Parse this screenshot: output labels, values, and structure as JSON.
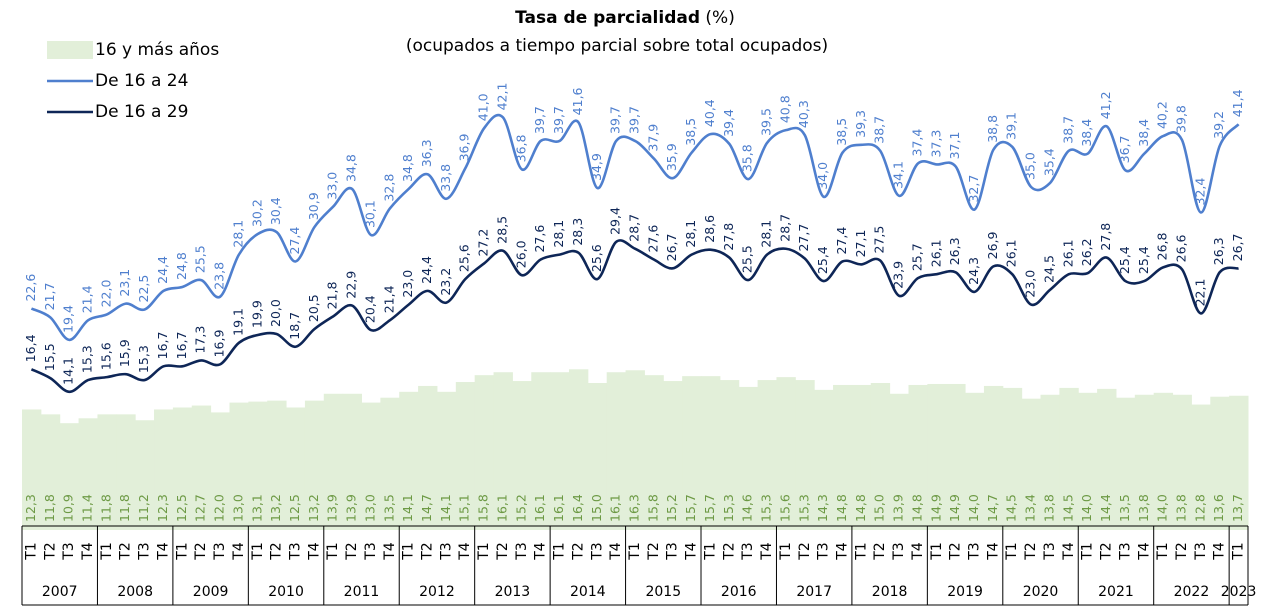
{
  "chart_data": {
    "type": "bar_line",
    "title": "Tasa de parcialidad",
    "title_unit": "(%)",
    "subtitle": "(ocupados a tiempo parcial sobre total ocupados)",
    "categories": [
      "T1",
      "T2",
      "T3",
      "T4",
      "T1",
      "T2",
      "T3",
      "T4",
      "T1",
      "T2",
      "T3",
      "T4",
      "T1",
      "T2",
      "T3",
      "T4",
      "T1",
      "T2",
      "T3",
      "T4",
      "T1",
      "T2",
      "T3",
      "T4",
      "T1",
      "T2",
      "T3",
      "T4",
      "T1",
      "T2",
      "T3",
      "T4",
      "T1",
      "T2",
      "T3",
      "T4",
      "T1",
      "T2",
      "T3",
      "T4",
      "T1",
      "T2",
      "T3",
      "T4",
      "T1",
      "T2",
      "T3",
      "T4",
      "T1",
      "T2",
      "T3",
      "T4",
      "T1",
      "T2",
      "T3",
      "T4",
      "T1",
      "T2",
      "T3",
      "T4",
      "T1",
      "T2",
      "T3",
      "T4",
      "T1"
    ],
    "years": [
      "2007",
      "2008",
      "2009",
      "2010",
      "2011",
      "2012",
      "2013",
      "2014",
      "2015",
      "2016",
      "2017",
      "2018",
      "2019",
      "2020",
      "2021",
      "2022",
      "2023"
    ],
    "ylim": [
      0,
      50
    ],
    "series": [
      {
        "name": "16 y más años",
        "kind": "bar",
        "color": "#e2efd9",
        "label_color": "#6d9a45",
        "values": [
          12.3,
          11.8,
          10.9,
          11.4,
          11.8,
          11.8,
          11.2,
          12.3,
          12.5,
          12.7,
          12.0,
          13.0,
          13.1,
          13.2,
          12.5,
          13.2,
          13.9,
          13.9,
          13.0,
          13.5,
          14.1,
          14.7,
          14.1,
          15.1,
          15.8,
          16.1,
          15.2,
          16.1,
          16.1,
          16.4,
          15.0,
          16.1,
          16.3,
          15.8,
          15.2,
          15.7,
          15.7,
          15.3,
          14.6,
          15.3,
          15.6,
          15.3,
          14.3,
          14.8,
          14.8,
          15.0,
          13.9,
          14.8,
          14.9,
          14.9,
          14.0,
          14.7,
          14.5,
          13.4,
          13.8,
          14.5,
          14.0,
          14.4,
          13.5,
          13.8,
          14.0,
          13.8,
          12.8,
          13.6,
          13.7
        ],
        "value_labels": [
          "12,3",
          "11,8",
          "10,9",
          "11,4",
          "11,8",
          "11,8",
          "11,2",
          "12,3",
          "12,5",
          "12,7",
          "12,0",
          "13,0",
          "13,1",
          "13,2",
          "12,5",
          "13,2",
          "13,9",
          "13,9",
          "13,0",
          "13,5",
          "14,1",
          "14,7",
          "14,1",
          "15,1",
          "15,8",
          "16,1",
          "15,2",
          "16,1",
          "16,1",
          "16,4",
          "15,0",
          "16,1",
          "16,3",
          "15,8",
          "15,2",
          "15,7",
          "15,7",
          "15,3",
          "14,6",
          "15,3",
          "15,6",
          "15,3",
          "14,3",
          "14,8",
          "14,8",
          "15,0",
          "13,9",
          "14,8",
          "14,9",
          "14,9",
          "14,0",
          "14,7",
          "14,5",
          "13,4",
          "13,8",
          "14,5",
          "14,0",
          "14,4",
          "13,5",
          "13,8",
          "14,0",
          "13,8",
          "12,8",
          "13,6",
          "13,7"
        ]
      },
      {
        "name": "De 16 a 24",
        "kind": "line",
        "color": "#4f7fce",
        "values": [
          22.6,
          21.7,
          19.4,
          21.4,
          22.0,
          23.1,
          22.5,
          24.4,
          24.8,
          25.5,
          23.8,
          28.1,
          30.2,
          30.4,
          27.4,
          30.9,
          33.0,
          34.8,
          30.1,
          32.8,
          34.8,
          36.3,
          33.8,
          36.9,
          41.0,
          42.1,
          36.8,
          39.7,
          39.7,
          41.6,
          34.9,
          39.7,
          39.7,
          37.9,
          35.9,
          38.5,
          40.4,
          39.4,
          35.8,
          39.5,
          40.8,
          40.3,
          34.0,
          38.5,
          39.3,
          38.7,
          34.1,
          37.4,
          37.3,
          37.1,
          32.7,
          38.8,
          39.1,
          35.0,
          35.4,
          38.7,
          38.4,
          41.2,
          36.7,
          38.4,
          40.2,
          39.8,
          32.4,
          39.2,
          41.4
        ],
        "value_labels": [
          "22,6",
          "21,7",
          "19,4",
          "21,4",
          "22,0",
          "23,1",
          "22,5",
          "24,4",
          "24,8",
          "25,5",
          "23,8",
          "28,1",
          "30,2",
          "30,4",
          "27,4",
          "30,9",
          "33,0",
          "34,8",
          "30,1",
          "32,8",
          "34,8",
          "36,3",
          "33,8",
          "36,9",
          "41,0",
          "42,1",
          "36,8",
          "39,7",
          "39,7",
          "41,6",
          "34,9",
          "39,7",
          "39,7",
          "37,9",
          "35,9",
          "38,5",
          "40,4",
          "39,4",
          "35,8",
          "39,5",
          "40,8",
          "40,3",
          "34,0",
          "38,5",
          "39,3",
          "38,7",
          "34,1",
          "37,4",
          "37,3",
          "37,1",
          "32,7",
          "38,8",
          "39,1",
          "35,0",
          "35,4",
          "38,7",
          "38,4",
          "41,2",
          "36,7",
          "38,4",
          "40,2",
          "39,8",
          "32,4",
          "39,2",
          "41,4"
        ]
      },
      {
        "name": "De 16 a 29",
        "kind": "line",
        "color": "#0e2657",
        "values": [
          16.4,
          15.5,
          14.1,
          15.3,
          15.6,
          15.9,
          15.3,
          16.7,
          16.7,
          17.3,
          16.9,
          19.1,
          19.9,
          20.0,
          18.7,
          20.5,
          21.8,
          22.9,
          20.4,
          21.4,
          23.0,
          24.4,
          23.2,
          25.6,
          27.2,
          28.5,
          26.0,
          27.6,
          28.1,
          28.3,
          25.6,
          29.4,
          28.7,
          27.6,
          26.7,
          28.1,
          28.6,
          27.8,
          25.5,
          28.1,
          28.7,
          27.7,
          25.4,
          27.4,
          27.1,
          27.5,
          23.9,
          25.7,
          26.1,
          26.3,
          24.3,
          26.9,
          26.1,
          23.0,
          24.5,
          26.1,
          26.2,
          27.8,
          25.4,
          25.4,
          26.8,
          26.6,
          22.1,
          26.3,
          26.7
        ],
        "value_labels": [
          "16,4",
          "15,5",
          "14,1",
          "15,3",
          "15,6",
          "15,9",
          "15,3",
          "16,7",
          "16,7",
          "17,3",
          "16,9",
          "19,1",
          "19,9",
          "20,0",
          "18,7",
          "20,5",
          "21,8",
          "22,9",
          "20,4",
          "21,4",
          "23,0",
          "24,4",
          "23,2",
          "25,6",
          "27,2",
          "28,5",
          "26,0",
          "27,6",
          "28,1",
          "28,3",
          "25,6",
          "29,4",
          "28,7",
          "27,6",
          "26,7",
          "28,1",
          "28,6",
          "27,8",
          "25,5",
          "28,1",
          "28,7",
          "27,7",
          "25,4",
          "27,4",
          "27,1",
          "27,5",
          "23,9",
          "25,7",
          "26,1",
          "26,3",
          "24,3",
          "26,9",
          "26,1",
          "23,0",
          "24,5",
          "26,1",
          "26,2",
          "27,8",
          "25,4",
          "25,4",
          "26,8",
          "26,6",
          "22,1",
          "26,3",
          "26,7"
        ]
      }
    ]
  }
}
